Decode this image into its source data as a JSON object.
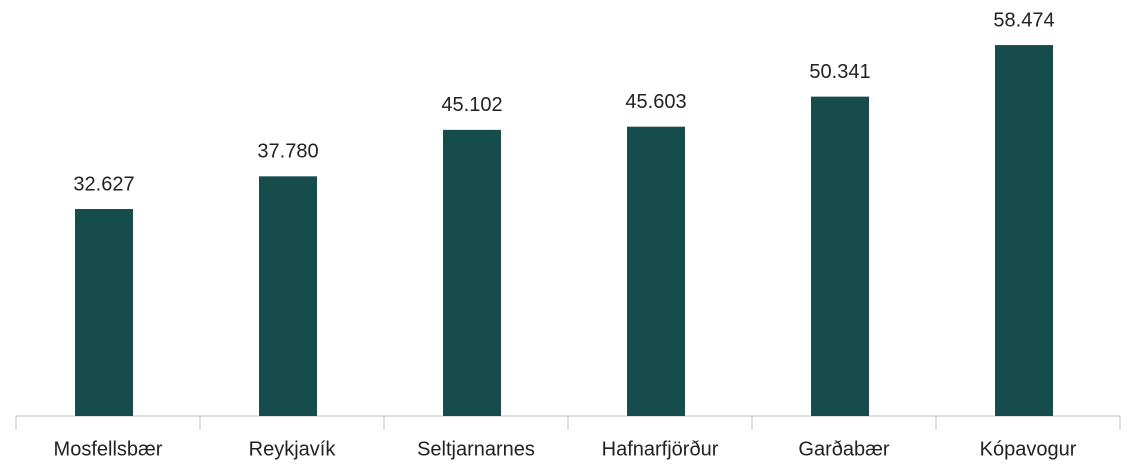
{
  "chart_data": {
    "type": "bar",
    "categories": [
      "Mosfellsbær",
      "Reykjavík",
      "Seltjarnarnes",
      "Hafnarfjörður",
      "Garðabær",
      "Kópavogur"
    ],
    "values": [
      32627,
      37780,
      45102,
      45603,
      50341,
      58474
    ],
    "value_labels": [
      "32.627",
      "37.780",
      "45.102",
      "45.603",
      "50.341",
      "58.474"
    ],
    "color": "#174c4c"
  }
}
